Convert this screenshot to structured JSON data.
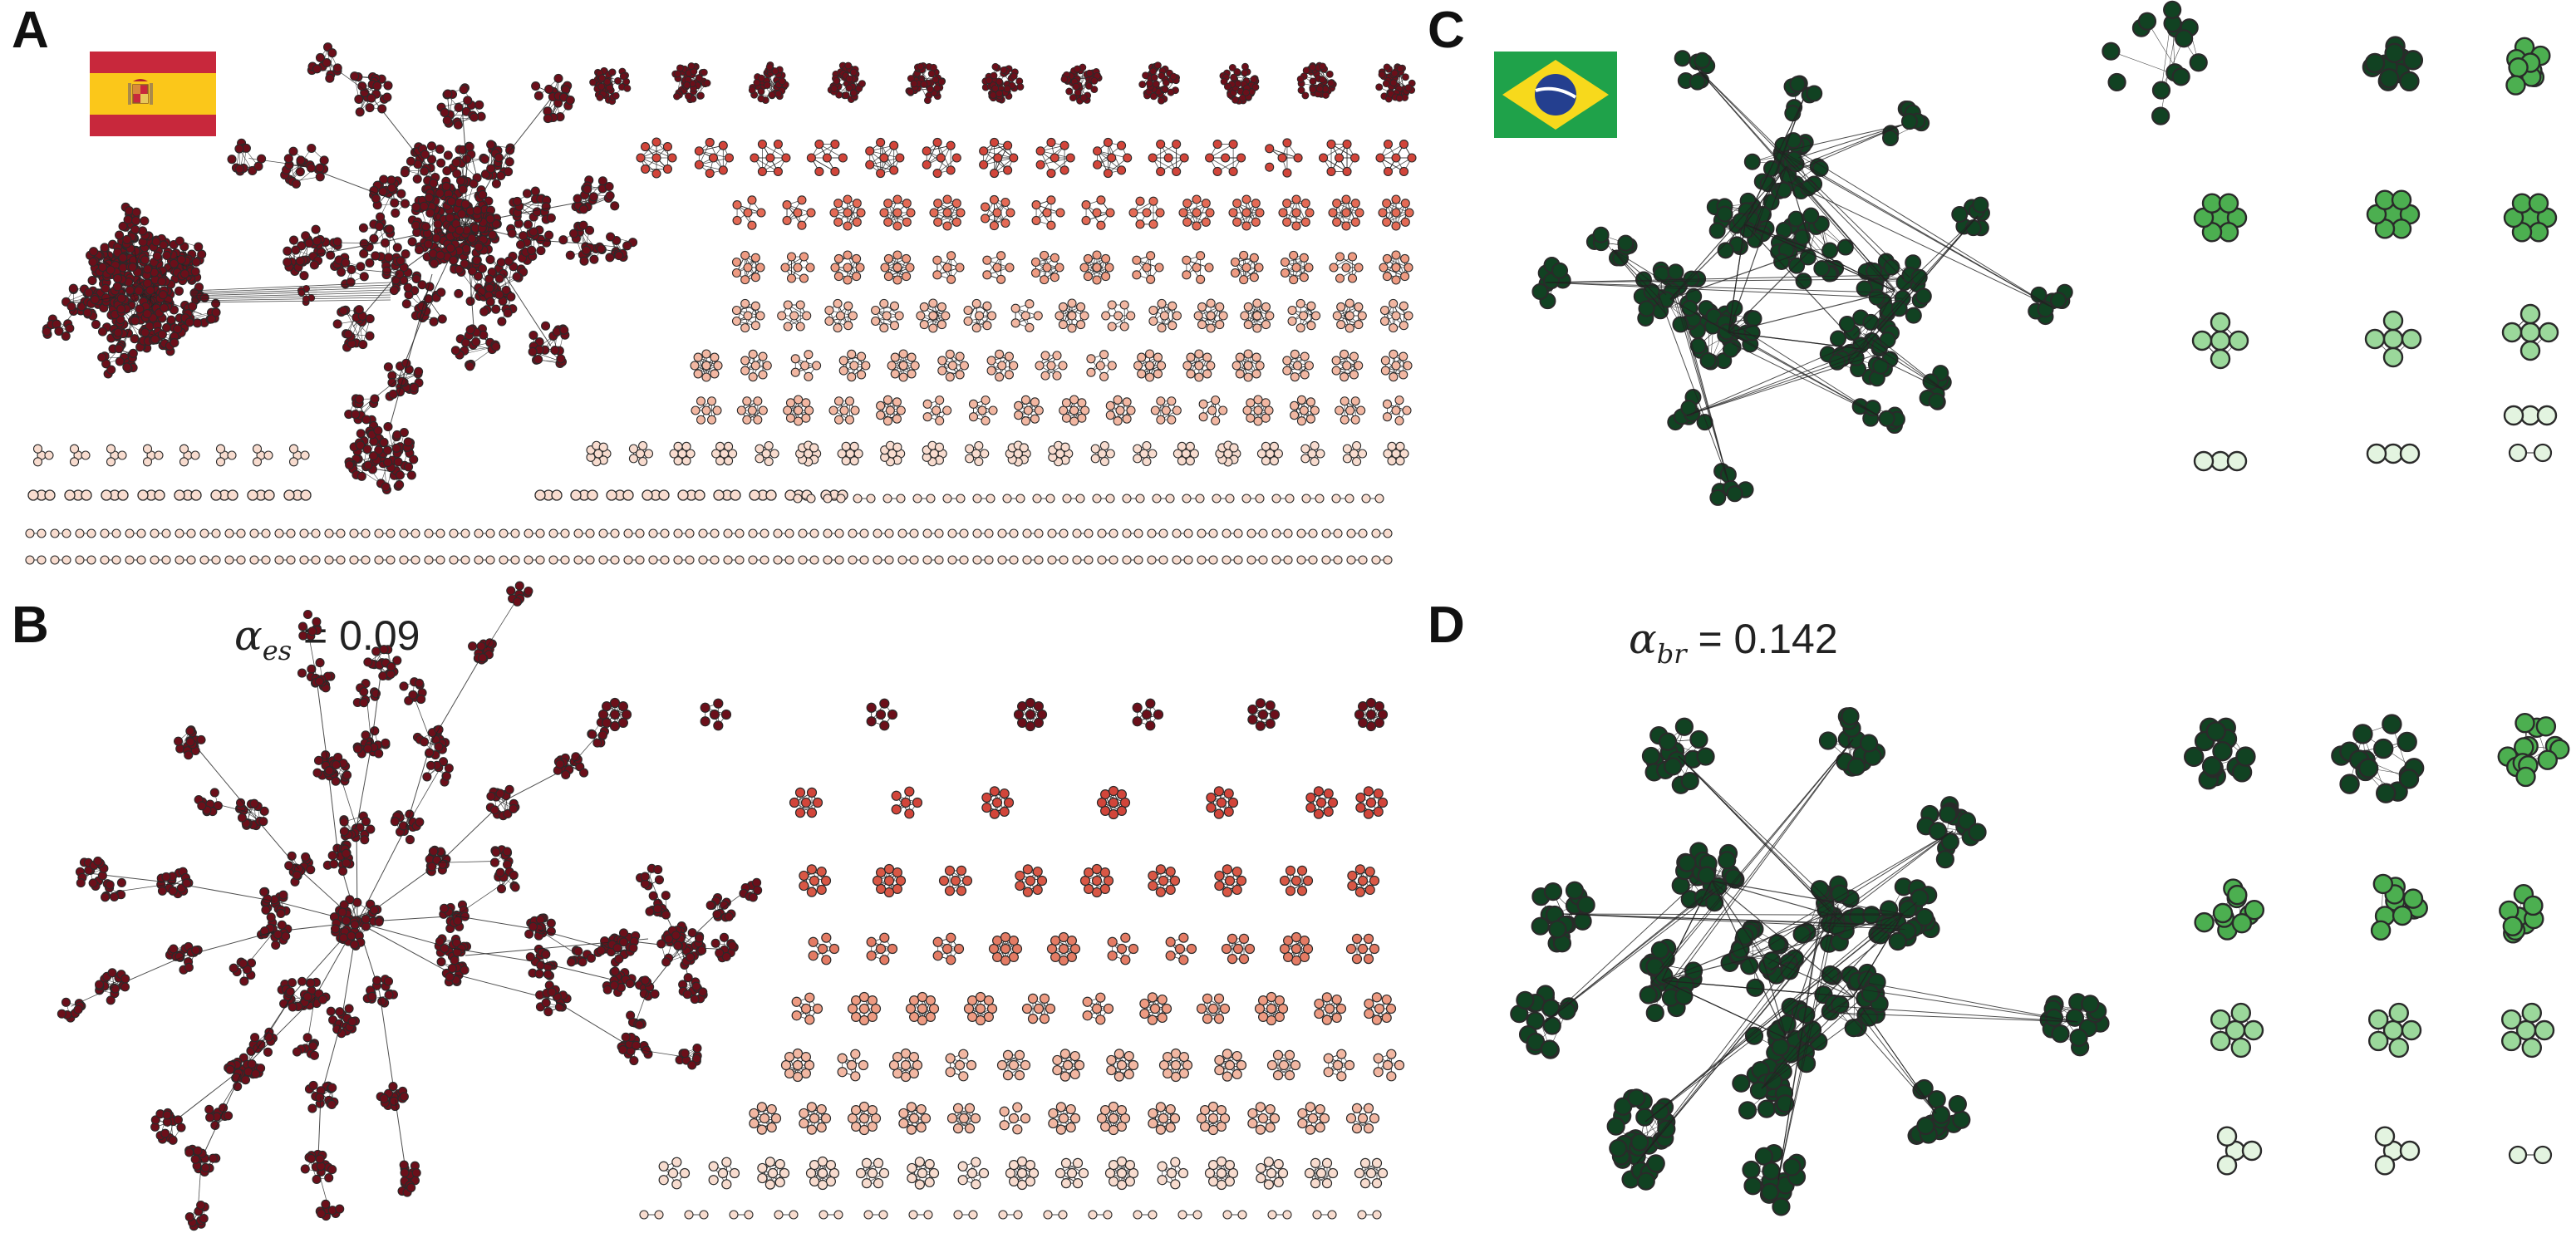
{
  "panels": [
    {
      "letter": "A"
    },
    {
      "letter": "B",
      "alpha": {
        "symbol": "α",
        "sub": "es",
        "value": "= 0.09"
      }
    },
    {
      "letter": "C"
    },
    {
      "letter": "D",
      "alpha": {
        "symbol": "α",
        "sub": "br",
        "value": "= 0.142"
      }
    }
  ],
  "flags": {
    "spain": "spain-flag",
    "brazil": "brazil-flag"
  },
  "colors": {
    "spain_dark": "#6b0f1a",
    "spain_mid": "#d2453a",
    "spain_light": "#f2b7a2",
    "spain_pale": "#f8dccf",
    "brazil_dark": "#114222",
    "brazil_mid": "#4caf50",
    "brazil_light": "#9bd89b",
    "brazil_pale": "#e3f4e0",
    "edge": "#222222"
  }
}
